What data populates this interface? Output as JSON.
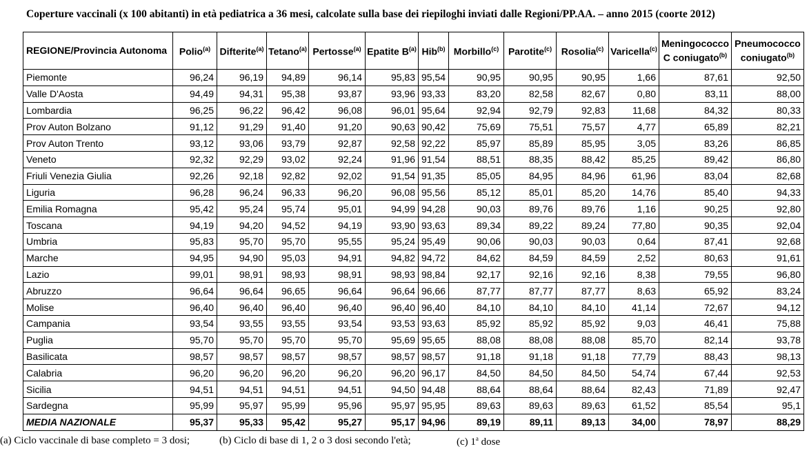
{
  "title": "Coperture vaccinali (x 100 abitanti) in età pediatrica a 36 mesi, calcolate sulla base dei riepiloghi inviati dalle Regioni/PP.AA. – anno 2015 (coorte 2012)",
  "table": {
    "columns": [
      {
        "label": "REGIONE/Provincia Autonoma"
      },
      {
        "label": "Polio",
        "note": "(a)"
      },
      {
        "label": "Difterite",
        "note": "(a)"
      },
      {
        "label": "Tetano",
        "note": "(a)"
      },
      {
        "label": "Pertosse",
        "note": "(a)"
      },
      {
        "label": "Epatite B",
        "note": "(a)"
      },
      {
        "label": "Hib",
        "note": "(b)"
      },
      {
        "label": "Morbillo",
        "note": "(c)"
      },
      {
        "label": "Parotite",
        "note": "(c)"
      },
      {
        "label": "Rosolia",
        "note": "(c)"
      },
      {
        "label": "Varicella",
        "note": "(c)"
      },
      {
        "label": "Meningococco C coniugato",
        "note": "(b)"
      },
      {
        "label": "Pneumococco coniugato",
        "note": "(b)"
      }
    ],
    "rows": [
      [
        "Piemonte",
        "96,24",
        "96,19",
        "94,89",
        "96,14",
        "95,83",
        "95,54",
        "90,95",
        "90,95",
        "90,95",
        "1,66",
        "87,61",
        "92,50"
      ],
      [
        "Valle D'Aosta",
        "94,49",
        "94,31",
        "95,38",
        "93,87",
        "93,96",
        "93,33",
        "83,20",
        "82,58",
        "82,67",
        "0,80",
        "83,11",
        "88,00"
      ],
      [
        "Lombardia",
        "96,25",
        "96,22",
        "96,42",
        "96,08",
        "96,01",
        "95,64",
        "92,94",
        "92,79",
        "92,83",
        "11,68",
        "84,32",
        "80,33"
      ],
      [
        "Prov Auton Bolzano",
        "91,12",
        "91,29",
        "91,40",
        "91,20",
        "90,63",
        "90,42",
        "75,69",
        "75,51",
        "75,57",
        "4,77",
        "65,89",
        "82,21"
      ],
      [
        "Prov Auton Trento",
        "93,12",
        "93,06",
        "93,79",
        "92,87",
        "92,58",
        "92,22",
        "85,97",
        "85,89",
        "85,95",
        "3,05",
        "83,26",
        "86,85"
      ],
      [
        "Veneto",
        "92,32",
        "92,29",
        "93,02",
        "92,24",
        "91,96",
        "91,54",
        "88,51",
        "88,35",
        "88,42",
        "85,25",
        "89,42",
        "86,80"
      ],
      [
        "Friuli Venezia Giulia",
        "92,26",
        "92,18",
        "92,82",
        "92,02",
        "91,54",
        "91,35",
        "85,05",
        "84,95",
        "84,96",
        "61,96",
        "83,04",
        "82,68"
      ],
      [
        "Liguria",
        "96,28",
        "96,24",
        "96,33",
        "96,20",
        "96,08",
        "95,56",
        "85,12",
        "85,01",
        "85,20",
        "14,76",
        "85,40",
        "94,33"
      ],
      [
        "Emilia Romagna",
        "95,42",
        "95,24",
        "95,74",
        "95,01",
        "94,99",
        "94,28",
        "90,03",
        "89,76",
        "89,76",
        "1,16",
        "90,25",
        "92,80"
      ],
      [
        "Toscana",
        "94,19",
        "94,20",
        "94,52",
        "94,19",
        "93,90",
        "93,63",
        "89,34",
        "89,22",
        "89,24",
        "77,80",
        "90,35",
        "92,04"
      ],
      [
        "Umbria",
        "95,83",
        "95,70",
        "95,70",
        "95,55",
        "95,24",
        "95,49",
        "90,06",
        "90,03",
        "90,03",
        "0,64",
        "87,41",
        "92,68"
      ],
      [
        "Marche",
        "94,95",
        "94,90",
        "95,03",
        "94,91",
        "94,82",
        "94,72",
        "84,62",
        "84,59",
        "84,59",
        "2,52",
        "80,63",
        "91,61"
      ],
      [
        "Lazio",
        "99,01",
        "98,91",
        "98,93",
        "98,91",
        "98,93",
        "98,84",
        "92,17",
        "92,16",
        "92,16",
        "8,38",
        "79,55",
        "96,80"
      ],
      [
        "Abruzzo",
        "96,64",
        "96,64",
        "96,65",
        "96,64",
        "96,64",
        "96,66",
        "87,77",
        "87,77",
        "87,77",
        "8,63",
        "65,92",
        "83,24"
      ],
      [
        "Molise",
        "96,40",
        "96,40",
        "96,40",
        "96,40",
        "96,40",
        "96,40",
        "84,10",
        "84,10",
        "84,10",
        "41,14",
        "72,67",
        "94,12"
      ],
      [
        "Campania",
        "93,54",
        "93,55",
        "93,55",
        "93,54",
        "93,53",
        "93,63",
        "85,92",
        "85,92",
        "85,92",
        "9,03",
        "46,41",
        "75,88"
      ],
      [
        "Puglia",
        "95,70",
        "95,70",
        "95,70",
        "95,70",
        "95,69",
        "95,65",
        "88,08",
        "88,08",
        "88,08",
        "85,70",
        "82,14",
        "93,78"
      ],
      [
        "Basilicata",
        "98,57",
        "98,57",
        "98,57",
        "98,57",
        "98,57",
        "98,57",
        "91,18",
        "91,18",
        "91,18",
        "77,79",
        "88,43",
        "98,13"
      ],
      [
        "Calabria",
        "96,20",
        "96,20",
        "96,20",
        "96,20",
        "96,20",
        "96,17",
        "84,50",
        "84,50",
        "84,50",
        "54,74",
        "67,44",
        "92,53"
      ],
      [
        "Sicilia",
        "94,51",
        "94,51",
        "94,51",
        "94,51",
        "94,50",
        "94,48",
        "88,64",
        "88,64",
        "88,64",
        "82,43",
        "71,89",
        "92,47"
      ],
      [
        "Sardegna",
        "95,99",
        "95,97",
        "95,99",
        "95,96",
        "95,97",
        "95,95",
        "89,63",
        "89,63",
        "89,63",
        "61,52",
        "85,54",
        "95,1"
      ]
    ],
    "national_average": [
      "MEDIA NAZIONALE",
      "95,37",
      "95,33",
      "95,42",
      "95,27",
      "95,17",
      "94,96",
      "89,19",
      "89,11",
      "89,13",
      "34,00",
      "78,97",
      "88,29"
    ]
  },
  "footnotes": [
    {
      "text": "(a) Ciclo vaccinale di base completo = 3 dosi;"
    },
    {
      "text": "(b) Ciclo di base di 1, 2 o 3 dosi secondo l'età;"
    },
    {
      "text": "(c) 1",
      "sup": "a",
      "tail": "dose"
    }
  ]
}
